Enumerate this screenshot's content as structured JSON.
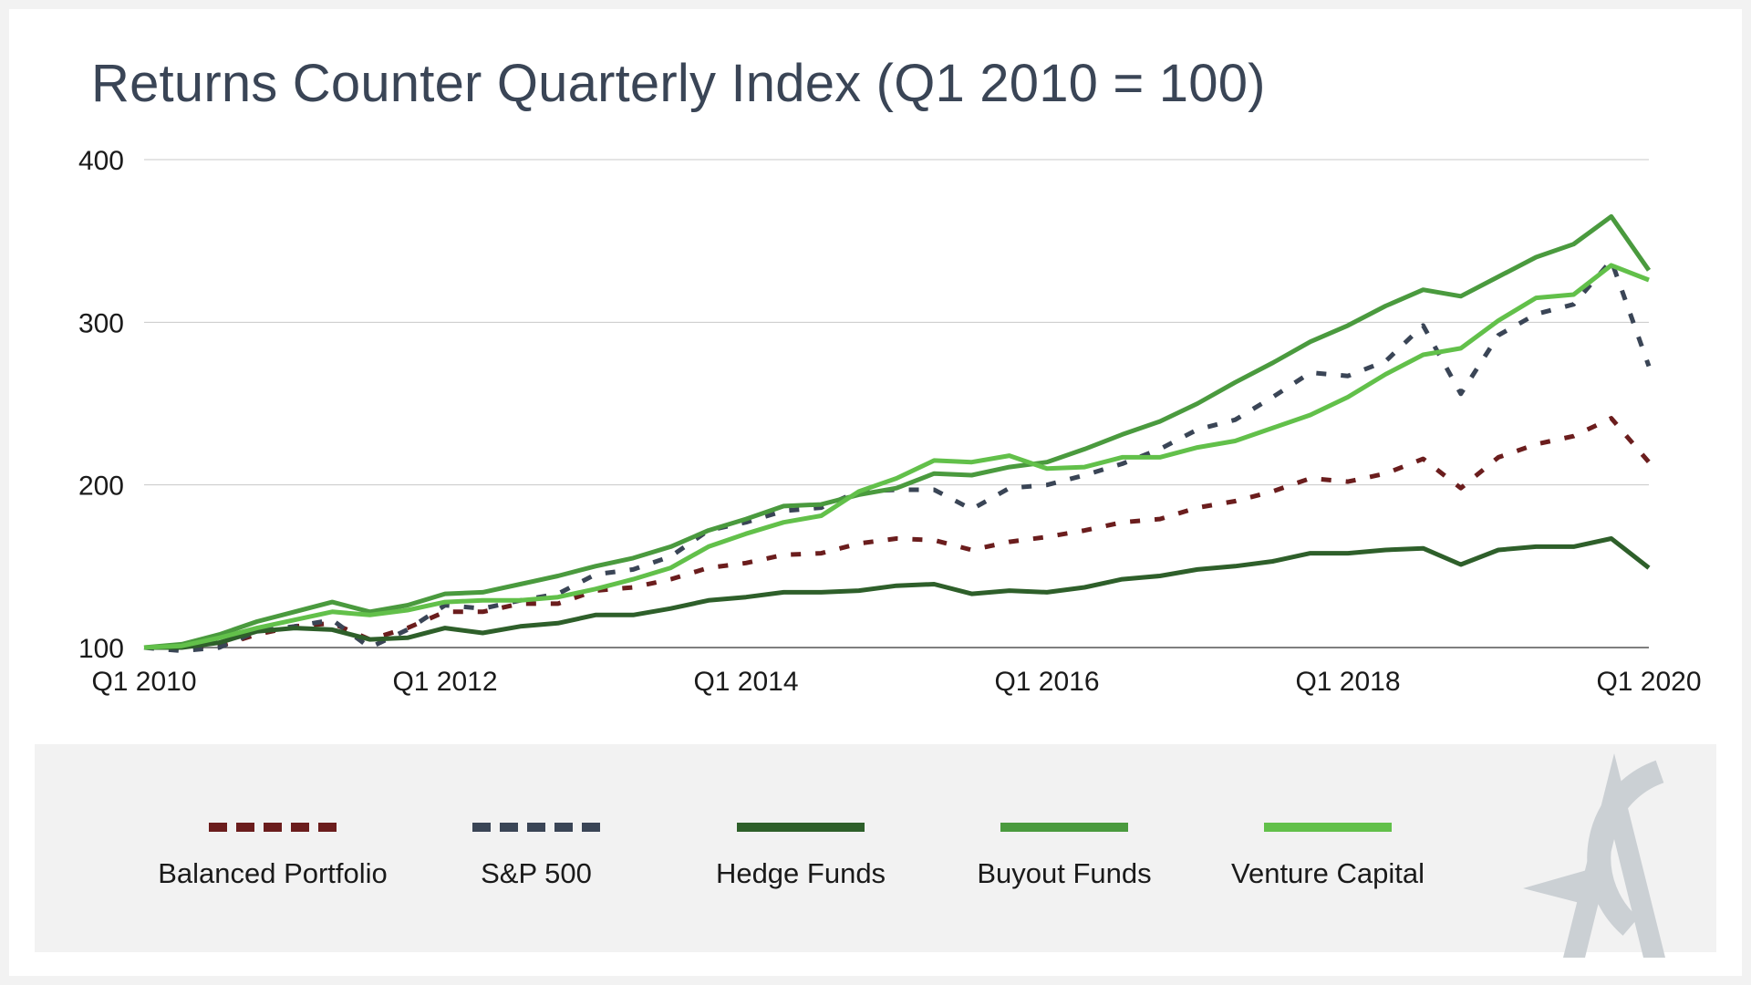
{
  "page": {
    "title": "Returns Counter Quarterly Index (Q1 2010 = 100)"
  },
  "chart_data": {
    "type": "line",
    "title": "Returns Counter Quarterly Index (Q1 2010 = 100)",
    "xlabel": "",
    "ylabel": "",
    "ylim": [
      100,
      400
    ],
    "yticks": [
      "100",
      "200",
      "300",
      "400"
    ],
    "grid": true,
    "legend_placement": "bottom",
    "x": [
      "Q1 2010",
      "Q2 2010",
      "Q3 2010",
      "Q4 2010",
      "Q1 2011",
      "Q2 2011",
      "Q3 2011",
      "Q4 2011",
      "Q1 2012",
      "Q2 2012",
      "Q3 2012",
      "Q4 2012",
      "Q1 2013",
      "Q2 2013",
      "Q3 2013",
      "Q4 2013",
      "Q1 2014",
      "Q2 2014",
      "Q3 2014",
      "Q4 2014",
      "Q1 2015",
      "Q2 2015",
      "Q3 2015",
      "Q4 2015",
      "Q1 2016",
      "Q2 2016",
      "Q3 2016",
      "Q4 2016",
      "Q1 2017",
      "Q2 2017",
      "Q3 2017",
      "Q4 2017",
      "Q1 2018",
      "Q2 2018",
      "Q3 2018",
      "Q4 2018",
      "Q1 2019",
      "Q2 2019",
      "Q3 2019",
      "Q4 2019",
      "Q1 2020"
    ],
    "xtick_labels": [
      "Q1 2010",
      "Q1 2012",
      "Q1 2014",
      "Q1 2016",
      "Q1 2018",
      "Q1 2020"
    ],
    "series": [
      {
        "name": "Balanced Portfolio",
        "color": "#6b1d1d",
        "dashed": true,
        "values": [
          100,
          100,
          101,
          108,
          113,
          115,
          105,
          112,
          122,
          122,
          127,
          127,
          135,
          137,
          142,
          149,
          152,
          157,
          158,
          164,
          167,
          166,
          160,
          165,
          168,
          172,
          177,
          179,
          186,
          190,
          196,
          204,
          202,
          207,
          216,
          198,
          217,
          225,
          230,
          241,
          214
        ]
      },
      {
        "name": "S&P 500",
        "color": "#3a4556",
        "dashed": true,
        "values": [
          100,
          98,
          100,
          110,
          113,
          117,
          100,
          111,
          126,
          124,
          129,
          133,
          145,
          148,
          156,
          172,
          177,
          184,
          186,
          196,
          197,
          197,
          185,
          198,
          200,
          206,
          213,
          222,
          234,
          240,
          254,
          269,
          267,
          276,
          298,
          256,
          292,
          305,
          311,
          338,
          273
        ]
      },
      {
        "name": "Hedge Funds",
        "color": "#2e5f2a",
        "dashed": false,
        "values": [
          100,
          100,
          103,
          110,
          112,
          111,
          105,
          106,
          112,
          109,
          113,
          115,
          120,
          120,
          124,
          129,
          131,
          134,
          134,
          135,
          138,
          139,
          133,
          135,
          134,
          137,
          142,
          144,
          148,
          150,
          153,
          158,
          158,
          160,
          161,
          151,
          160,
          162,
          162,
          167,
          149
        ]
      },
      {
        "name": "Buyout Funds",
        "color": "#4a9a3e",
        "dashed": false,
        "values": [
          100,
          102,
          108,
          116,
          122,
          128,
          122,
          126,
          133,
          134,
          139,
          144,
          150,
          155,
          162,
          172,
          179,
          187,
          188,
          194,
          198,
          207,
          206,
          211,
          214,
          222,
          231,
          239,
          250,
          263,
          275,
          288,
          298,
          310,
          320,
          316,
          328,
          340,
          348,
          365,
          332
        ]
      },
      {
        "name": "Venture Capital",
        "color": "#62c04a",
        "dashed": false,
        "values": [
          100,
          101,
          106,
          112,
          117,
          122,
          120,
          123,
          128,
          129,
          129,
          131,
          136,
          142,
          149,
          162,
          170,
          177,
          181,
          196,
          204,
          215,
          214,
          218,
          210,
          211,
          217,
          217,
          223,
          227,
          235,
          243,
          254,
          268,
          280,
          284,
          301,
          315,
          317,
          335,
          326
        ]
      }
    ]
  }
}
